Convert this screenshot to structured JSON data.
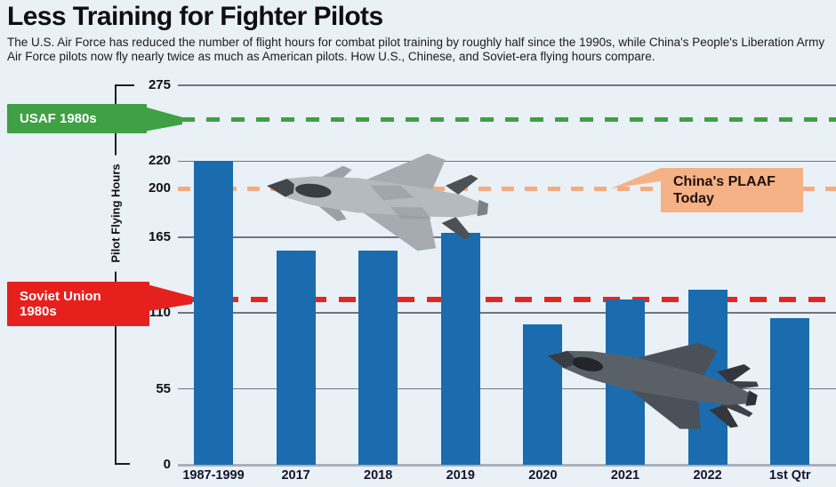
{
  "header": {
    "title": "Less Training for Fighter Pilots",
    "subtitle": "The U.S. Air Force has reduced the number of flight hours for combat pilot training by roughly half since the 1990s, while China's People's Liberation Army Air Force pilots now fly nearly twice as much as American pilots. How U.S., Chinese, and Soviet-era flying hours compare."
  },
  "chart_data": {
    "type": "bar",
    "title": "Less Training for Fighter Pilots",
    "categories": [
      "1987-1999",
      "2017",
      "2018",
      "2019",
      "2020",
      "2021",
      "2022",
      "1st Qtr"
    ],
    "values": [
      220,
      155,
      155,
      168,
      102,
      120,
      127,
      106
    ],
    "xlabel": "",
    "ylabel": "Pilot Flying Hours",
    "ylim": [
      0,
      275
    ],
    "grid": "horizontal",
    "bar_color": "#1a6cae",
    "background_color": "#e9f0f6",
    "yticks": [
      {
        "v": 275,
        "label": "275",
        "grid": true
      },
      {
        "v": 220,
        "label": "220",
        "grid": true
      },
      {
        "v": 200,
        "label": "200",
        "grid": false
      },
      {
        "v": 165,
        "label": "165",
        "grid": true
      },
      {
        "v": 110,
        "label": "110",
        "grid": true
      },
      {
        "v": 55,
        "label": "55",
        "grid": true
      },
      {
        "v": 0,
        "label": "0",
        "grid": true
      }
    ],
    "reference_lines": [
      {
        "id": "usaf",
        "label": "USAF 1980s",
        "label_lines": [
          "USAF 1980s"
        ],
        "value": 250,
        "style": "dashed",
        "color": "#3fa044",
        "box_color": "#3fa044",
        "text_color": "#ffffff",
        "label_position": "left"
      },
      {
        "id": "plaaf",
        "label": "China's PLAAF Today",
        "label_lines": [
          "China's PLAAF",
          "Today"
        ],
        "value": 200,
        "style": "dashed",
        "color": "#f3ac80",
        "box_color": "#f5b286",
        "text_color": "#201008",
        "label_position": "right"
      },
      {
        "id": "soviet",
        "label": "Soviet Union 1980s",
        "label_lines": [
          "Soviet Union",
          "1980s"
        ],
        "value": 120,
        "style": "dashed",
        "color": "#e52620",
        "box_color": "#e6201d",
        "text_color": "#ffffff",
        "label_position": "left"
      }
    ],
    "annotations": [
      "Chinese J-20 fighter jet photo",
      "U.S. F-35 fighter jet photo"
    ]
  }
}
